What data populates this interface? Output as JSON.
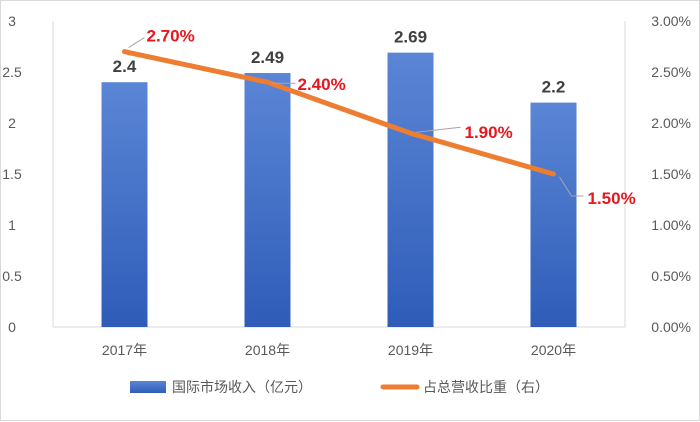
{
  "chart_data": {
    "type": "bar",
    "categories": [
      "2017年",
      "2018年",
      "2019年",
      "2020年"
    ],
    "series": [
      {
        "name": "国际市场收入（亿元）",
        "type": "bar",
        "axis": "left",
        "values": [
          2.4,
          2.49,
          2.69,
          2.2
        ],
        "labels": [
          "2.4",
          "2.49",
          "2.69",
          "2.2"
        ]
      },
      {
        "name": "占总营收比重（右）",
        "type": "line",
        "axis": "right",
        "values": [
          2.7,
          2.4,
          1.9,
          1.5
        ],
        "labels": [
          "2.70%",
          "2.40%",
          "1.90%",
          "1.50%"
        ]
      }
    ],
    "ylim": [
      0,
      3
    ],
    "y_ticks": [
      "0",
      "0.5",
      "1",
      "1.5",
      "2",
      "2.5",
      "3"
    ],
    "y2lim": [
      0,
      3
    ],
    "y2_ticks": [
      "0.00%",
      "0.50%",
      "1.00%",
      "1.50%",
      "2.00%",
      "2.50%",
      "3.00%"
    ],
    "legend": "bottom",
    "grid": false
  },
  "colors": {
    "bar_top": "#5b86d6",
    "bar_bottom": "#2f5cb8",
    "line": "#ed7d31",
    "line_label": "#e8171d",
    "axis": "#d9d9d9"
  }
}
